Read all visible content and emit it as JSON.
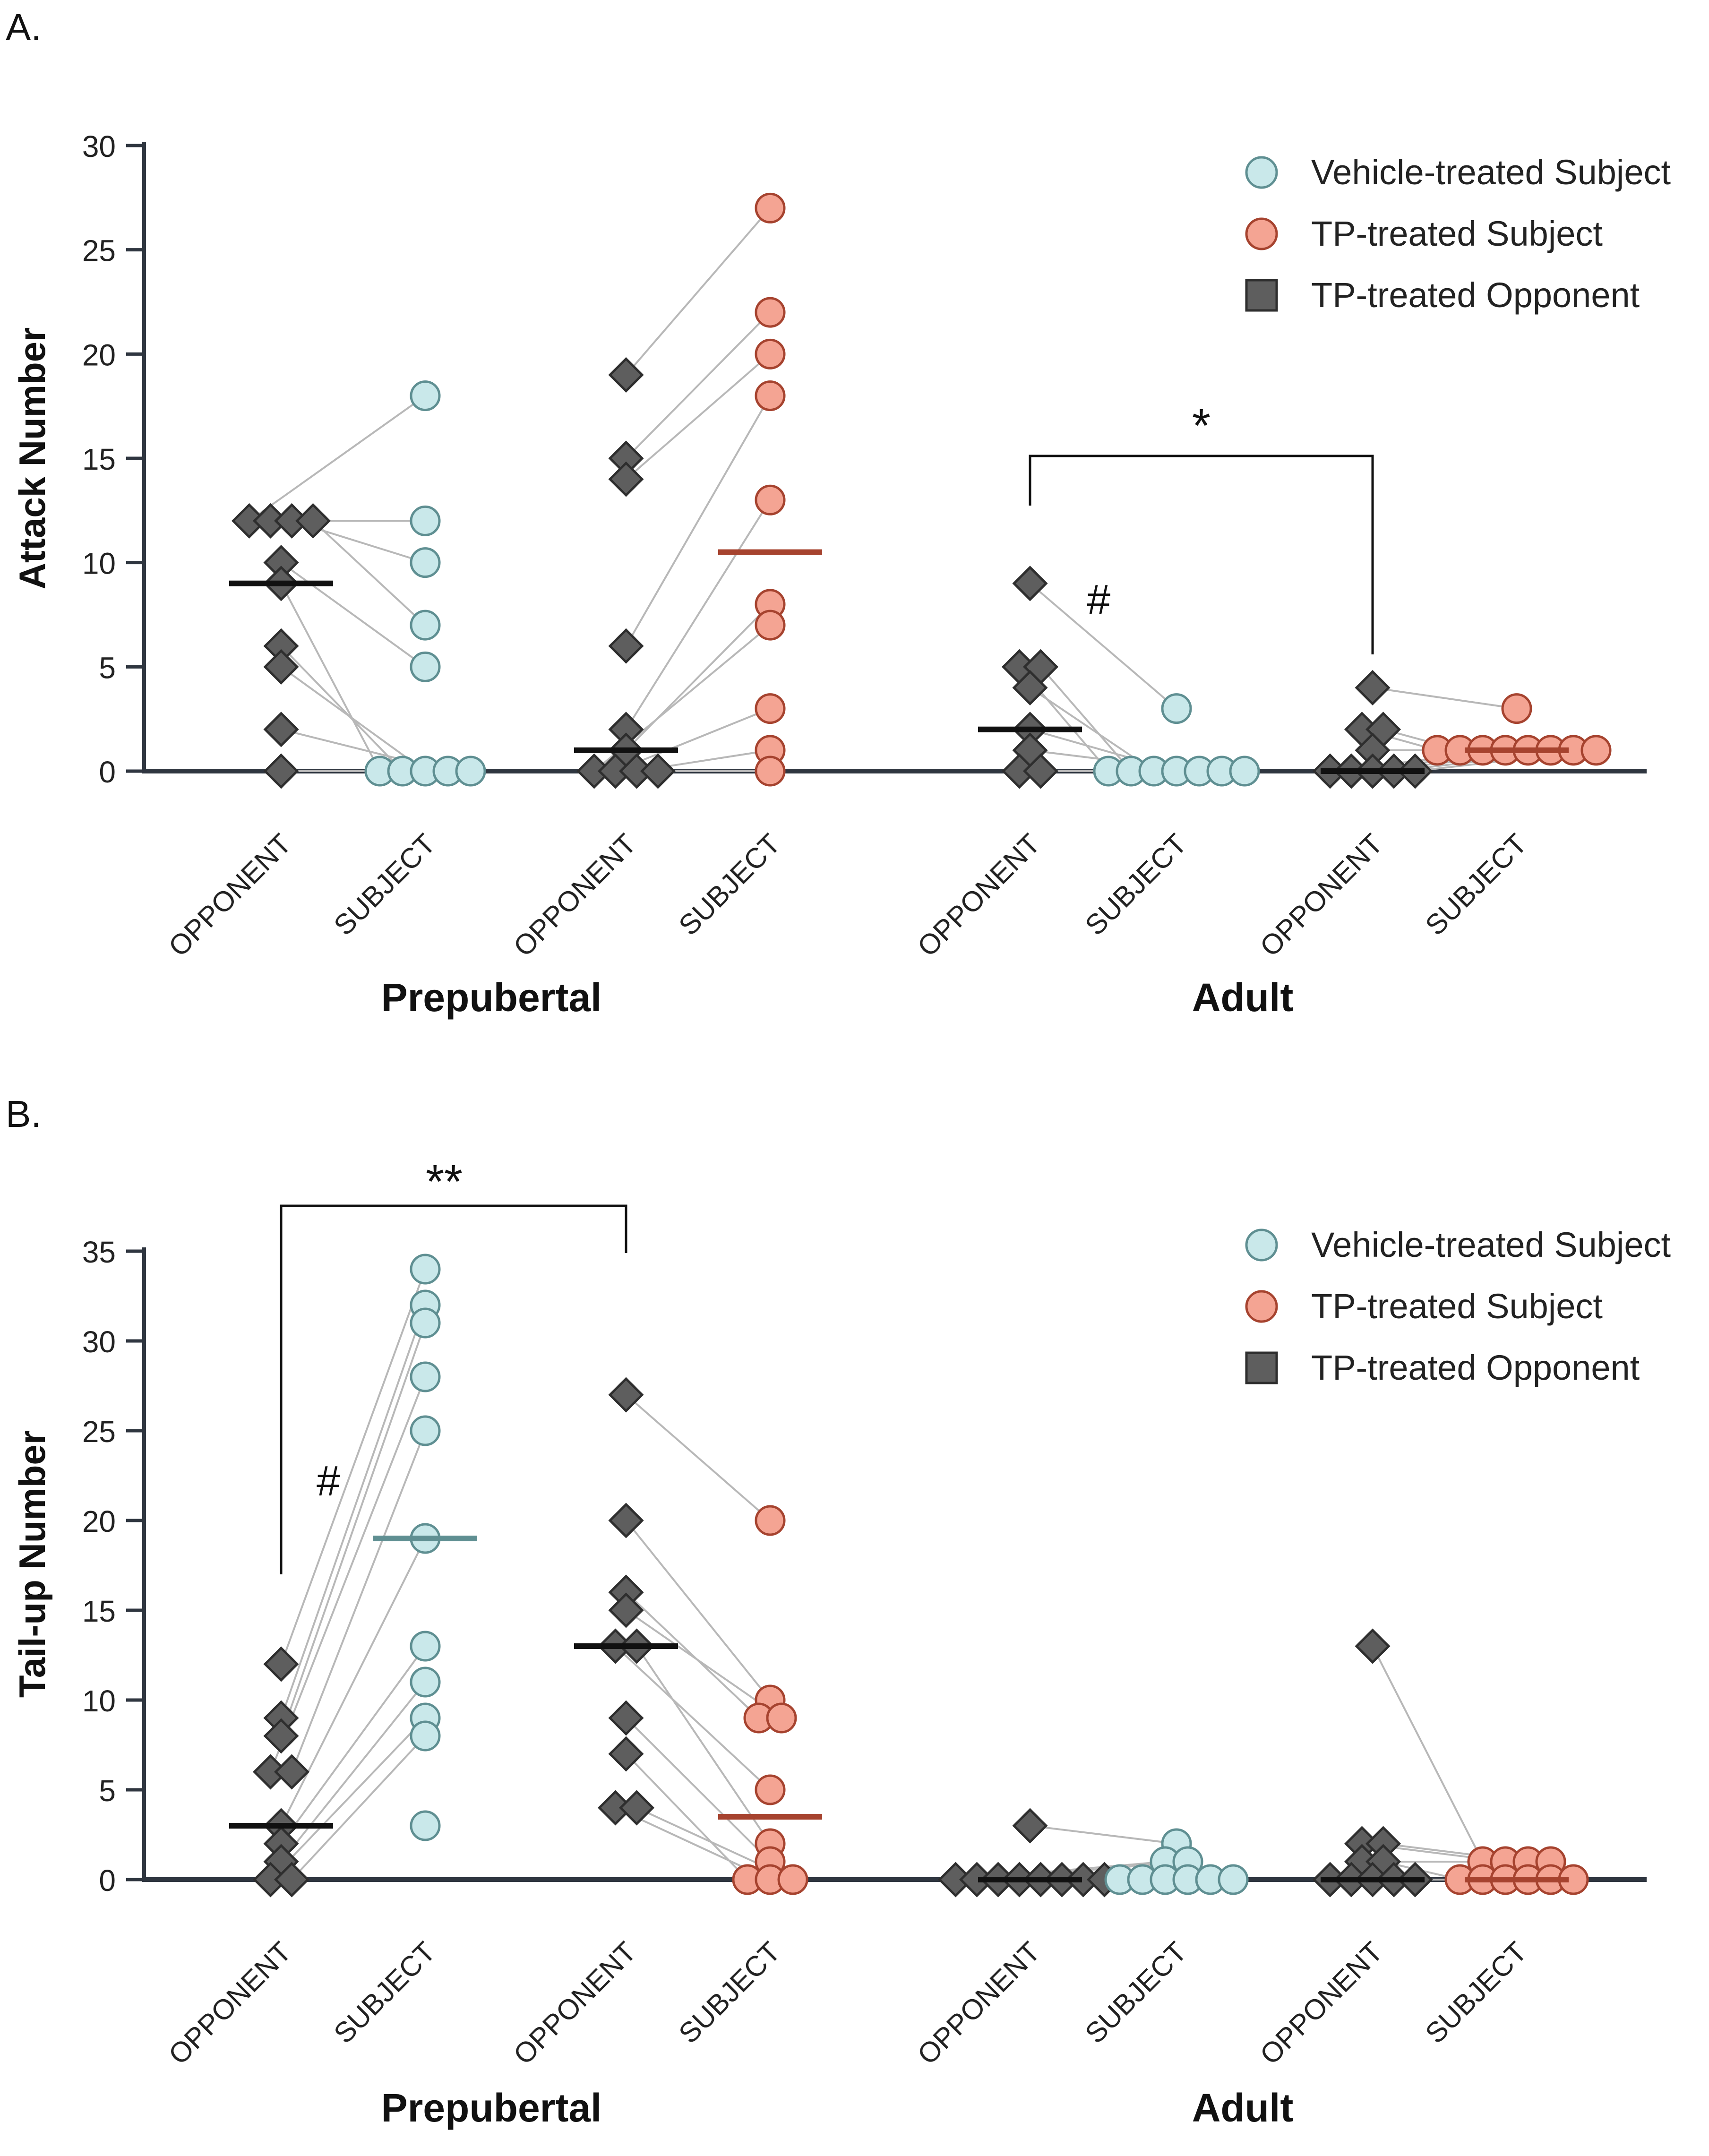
{
  "colors": {
    "vehicle_fill": "#c9e8ea",
    "vehicle_stroke": "#5f8f92",
    "tp_fill": "#f4a493",
    "tp_stroke": "#a6432f",
    "opponent_fill": "#5e5e5e",
    "opponent_stroke": "#2e2e2e",
    "axis": "#2f3640",
    "pair_line": "#b8b8b8",
    "mean_black": "#111111",
    "mean_teal": "#5f8f92",
    "mean_red": "#a6432f"
  },
  "legend": {
    "items": [
      {
        "label": "Vehicle-treated Subject",
        "marker": "circle",
        "series": "vehicle"
      },
      {
        "label": "TP-treated Subject",
        "marker": "circle",
        "series": "tp"
      },
      {
        "label": "TP-treated Opponent",
        "marker": "square",
        "series": "opponent"
      }
    ]
  },
  "chart_data": [
    {
      "type": "scatter",
      "panel": "A.",
      "ylabel": "Attack Number",
      "ylim": [
        0,
        30
      ],
      "yticks": [
        0,
        5,
        10,
        15,
        20,
        25,
        30
      ],
      "category_labels": [
        "OPPONENT",
        "SUBJECT",
        "OPPONENT",
        "SUBJECT",
        "OPPONENT",
        "SUBJECT",
        "OPPONENT",
        "SUBJECT"
      ],
      "groups": [
        "Prepubertal",
        "Adult"
      ],
      "legend_position": "top-right",
      "pairs": [
        {
          "series": "vehicle",
          "opponent": [
            12,
            12,
            12,
            12,
            10,
            9,
            6,
            5,
            2,
            0
          ],
          "subject": [
            18,
            12,
            10,
            7,
            5,
            0,
            0,
            0,
            0,
            0
          ],
          "opponent_mean": 9,
          "subject_mean": null
        },
        {
          "series": "tp",
          "opponent": [
            19,
            15,
            14,
            6,
            2,
            1,
            0,
            0,
            0,
            0
          ],
          "subject": [
            27,
            22,
            20,
            18,
            13,
            8,
            7,
            3,
            1,
            0
          ],
          "opponent_mean": 1,
          "subject_mean": 10.5
        },
        {
          "series": "vehicle",
          "opponent": [
            9,
            5,
            5,
            4,
            2,
            1,
            0,
            0
          ],
          "subject": [
            3,
            0,
            0,
            0,
            0,
            0,
            0,
            0
          ],
          "opponent_mean": 2,
          "subject_mean": null
        },
        {
          "series": "tp",
          "opponent": [
            4,
            2,
            2,
            1,
            0,
            0,
            0,
            0,
            0
          ],
          "subject": [
            3,
            1,
            1,
            1,
            1,
            1,
            1,
            1,
            1
          ],
          "opponent_mean": 0,
          "subject_mean": 1
        }
      ],
      "annotations": [
        {
          "text": "*",
          "kind": "bracket",
          "between": [
            "Adult vehicle OPPONENT",
            "Adult TP OPPONENT"
          ]
        },
        {
          "text": "#",
          "kind": "label",
          "near": "Adult vehicle OPPONENT"
        }
      ]
    },
    {
      "type": "scatter",
      "panel": "B.",
      "ylabel": "Tail-up Number",
      "ylim": [
        0,
        35
      ],
      "yticks": [
        0,
        5,
        10,
        15,
        20,
        25,
        30,
        35
      ],
      "category_labels": [
        "OPPONENT",
        "SUBJECT",
        "OPPONENT",
        "SUBJECT",
        "OPPONENT",
        "SUBJECT",
        "OPPONENT",
        "SUBJECT"
      ],
      "groups": [
        "Prepubertal",
        "Adult"
      ],
      "legend_position": "top-right",
      "pairs": [
        {
          "series": "vehicle",
          "opponent": [
            12,
            9,
            8,
            6,
            6,
            3,
            2,
            1,
            0,
            0
          ],
          "subject": [
            34,
            32,
            31,
            28,
            25,
            19,
            13,
            11,
            9,
            8,
            3
          ],
          "opponent_mean": 3,
          "subject_mean": 19
        },
        {
          "series": "tp",
          "opponent": [
            27,
            20,
            16,
            15,
            13,
            13,
            9,
            7,
            4,
            4
          ],
          "subject": [
            20,
            10,
            9,
            9,
            5,
            2,
            1,
            0,
            0,
            0
          ],
          "opponent_mean": 13,
          "subject_mean": 3.5
        },
        {
          "series": "vehicle",
          "opponent": [
            3,
            0,
            0,
            0,
            0,
            0,
            0,
            0,
            0
          ],
          "subject": [
            2,
            1,
            1,
            0,
            0,
            0,
            0,
            0,
            0
          ],
          "opponent_mean": 0,
          "subject_mean": null
        },
        {
          "series": "tp",
          "opponent": [
            13,
            2,
            2,
            1,
            1,
            0,
            0,
            0,
            0,
            0
          ],
          "subject": [
            1,
            1,
            1,
            1,
            0,
            0,
            0,
            0,
            0,
            0
          ],
          "opponent_mean": 0,
          "subject_mean": 0
        }
      ],
      "annotations": [
        {
          "text": "**",
          "kind": "bracket",
          "between": [
            "Prepubertal vehicle OPPONENT",
            "Prepubertal TP OPPONENT"
          ]
        },
        {
          "text": "#",
          "kind": "label",
          "near": "Prepubertal vehicle OPPONENT"
        }
      ]
    }
  ]
}
